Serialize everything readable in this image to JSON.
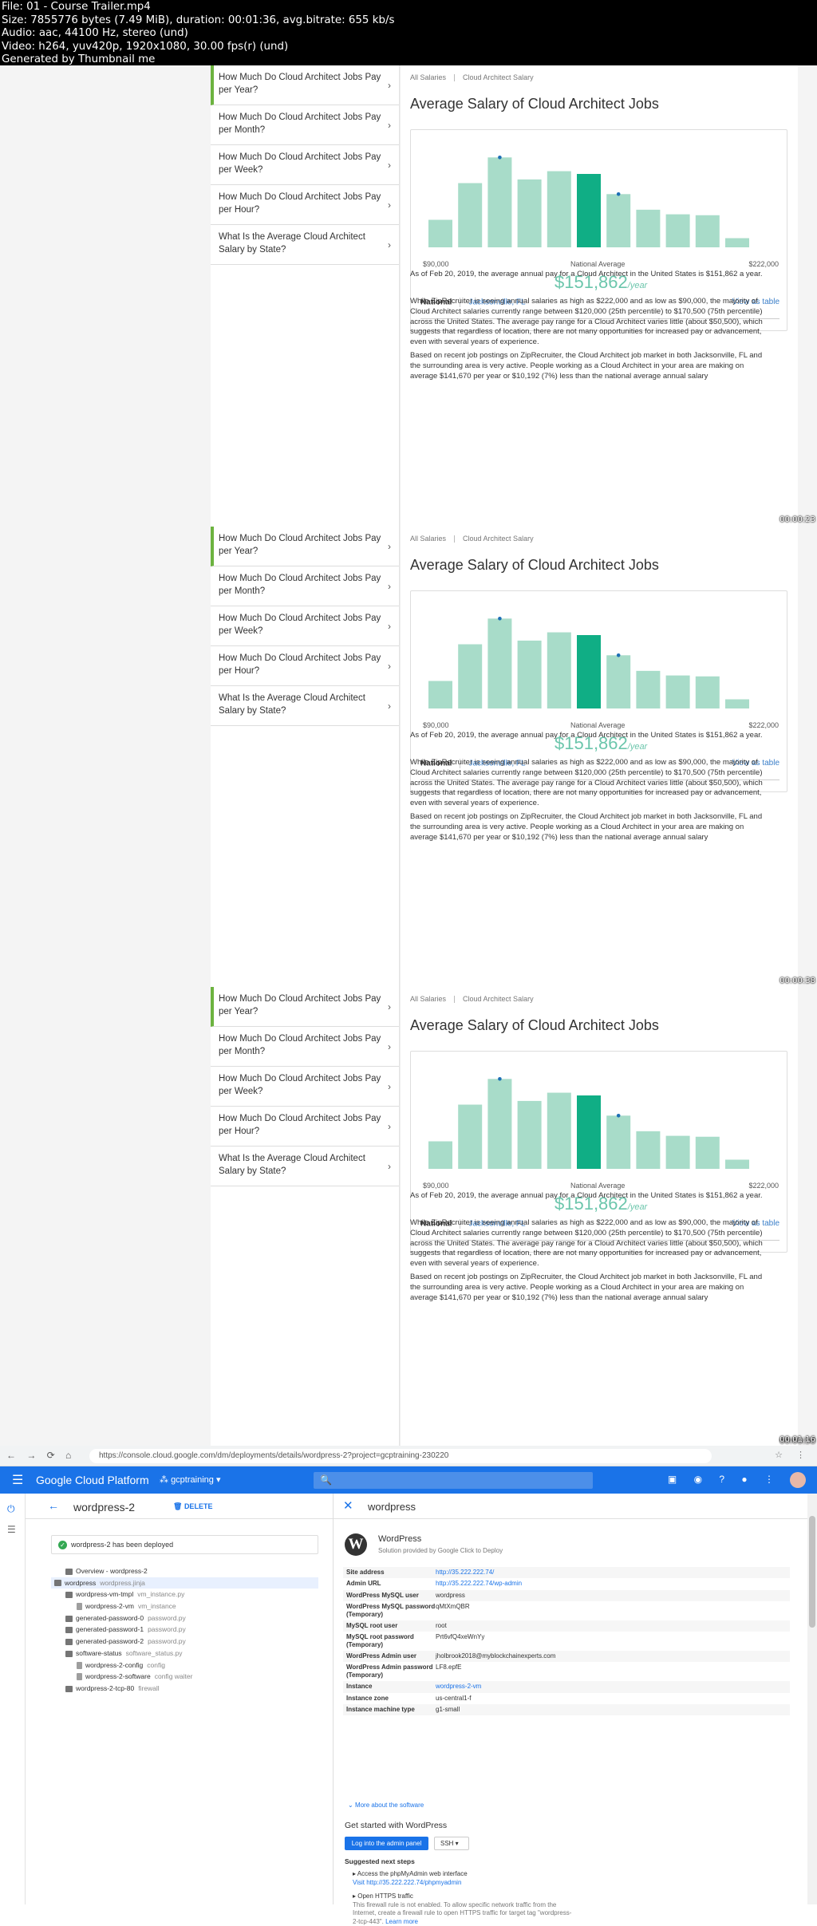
{
  "header_lines": [
    "File: 01 - Course Trailer.mp4",
    "Size: 7855776 bytes (7.49 MiB), duration: 00:01:36, avg.bitrate: 655 kb/s",
    "Audio: aac, 44100 Hz, stereo (und)",
    "Video: h264, yuv420p, 1920x1080, 30.00 fps(r) (und)",
    "Generated by Thumbnail me"
  ],
  "frame_timestamps": [
    "00:00:23",
    "00:00:38",
    "00:00:58"
  ],
  "faq": [
    "How Much Do Cloud Architect Jobs Pay per Year?",
    "How Much Do Cloud Architect Jobs Pay per Month?",
    "How Much Do Cloud Architect Jobs Pay per Week?",
    "How Much Do Cloud Architect Jobs Pay per Hour?",
    "What Is the Average Cloud Architect Salary by State?"
  ],
  "crumbs": [
    "All Salaries",
    "Cloud Architect Salary"
  ],
  "salary": {
    "title": "Average Salary of Cloud Architect Jobs",
    "min_label": "$90,000",
    "max_label": "$222,000",
    "national_label": "National Average",
    "amount": "$151,862",
    "per": "/year",
    "national": "National",
    "city": "Jacksonville, FL",
    "view_table": "View as table",
    "p1": "As of Feb 20, 2019, the average annual pay for a Cloud Architect in the United States is $151,862 a year.",
    "p2": "While ZipRecruiter is seeing annual salaries as high as $222,000 and as low as $90,000, the majority of Cloud Architect salaries currently range between $120,000 (25th percentile) to $170,500 (75th percentile) across the United States. The average pay range for a Cloud Architect varies little (about $50,500), which suggests that regardless of location, there are not many opportunities for increased pay or advancement, even with several years of experience.",
    "p3": "Based on recent job postings on ZipRecruiter, the Cloud Architect job market in both Jacksonville, FL and the surrounding area is very active. People working as a Cloud Architect in your area are making on average $141,670 per year or $10,192 (7%) less than the national average annual salary"
  },
  "chart_data": {
    "type": "bar",
    "values": [
      30,
      70,
      98,
      74,
      83,
      80,
      58,
      41,
      36,
      35,
      10
    ],
    "highlight_index": 5,
    "marker_indices": [
      2,
      6
    ],
    "colors": {
      "bar": "#a8dcc9",
      "highlight": "#10ae85",
      "marker": "#1d6fb5"
    }
  },
  "gcp": {
    "timestamp": "00:01:16",
    "url": "https://console.cloud.google.com/dm/deployments/details/wordpress-2?project=gcptraining-230220",
    "brand": "Google Cloud Platform",
    "project": "gcptraining",
    "search_placeholder": "",
    "deployment": "wordpress-2",
    "delete": "DELETE",
    "deployed_msg": "wordpress-2 has been deployed",
    "tree": [
      {
        "label": "Overview - wordpress-2",
        "type": "",
        "indent": 1
      },
      {
        "label": "wordpress",
        "type": "wordpress.jinja",
        "indent": 0
      },
      {
        "label": "wordpress-vm-tmpl",
        "type": "vm_instance.py",
        "indent": 1
      },
      {
        "label": "wordpress-2-vm",
        "type": "vm_instance",
        "indent": 2
      },
      {
        "label": "generated-password-0",
        "type": "password.py",
        "indent": 1
      },
      {
        "label": "generated-password-1",
        "type": "password.py",
        "indent": 1
      },
      {
        "label": "generated-password-2",
        "type": "password.py",
        "indent": 1
      },
      {
        "label": "software-status",
        "type": "software_status.py",
        "indent": 1
      },
      {
        "label": "wordpress-2-config",
        "type": "config",
        "indent": 2
      },
      {
        "label": "wordpress-2-software",
        "type": "config waiter",
        "indent": 2
      },
      {
        "label": "wordpress-2-tcp-80",
        "type": "firewall",
        "indent": 1
      }
    ],
    "panel_title": "wordpress",
    "wp_name": "WordPress",
    "wp_sub": "Solution provided by Google Click to Deploy",
    "props": [
      {
        "k": "Site address",
        "v": "http://35.222.222.74/",
        "link": true
      },
      {
        "k": "Admin URL",
        "v": "http://35.222.222.74/wp-admin",
        "link": true
      },
      {
        "k": "WordPress MySQL user",
        "v": "wordpress",
        "link": false
      },
      {
        "k": "WordPress MySQL password (Temporary)",
        "v": "qMtXmQBR",
        "link": false
      },
      {
        "k": "MySQL root user",
        "v": "root",
        "link": false
      },
      {
        "k": "MySQL root password (Temporary)",
        "v": "Prt6vfQ4xeWnYy",
        "link": false
      },
      {
        "k": "WordPress Admin user",
        "v": "jholbrook2018@myblockchainexperts.com",
        "link": false
      },
      {
        "k": "WordPress Admin password (Temporary)",
        "v": "LF8.epfE",
        "link": false
      },
      {
        "k": "Instance",
        "v": "wordpress-2-vm",
        "link": true
      },
      {
        "k": "Instance zone",
        "v": "us-central1-f",
        "link": false
      },
      {
        "k": "Instance machine type",
        "v": "g1-small",
        "link": false
      }
    ],
    "more_about": "More about the software",
    "get_started": "Get started with WordPress",
    "admin_btn": "Log into the admin panel",
    "ssh_btn": "SSH",
    "next_steps": "Suggested next steps",
    "step1_title": "Access the phpMyAdmin web interface",
    "step1_link": "Visit http://35.222.222.74/phpmyadmin",
    "step2_title": "Open HTTPS traffic",
    "step2_text": "This firewall rule is not enabled. To allow specific network traffic from the Internet, create a firewall rule to open HTTPS traffic for target tag \"wordpress-2-tcp-443\".",
    "step2_link": "Learn more"
  }
}
